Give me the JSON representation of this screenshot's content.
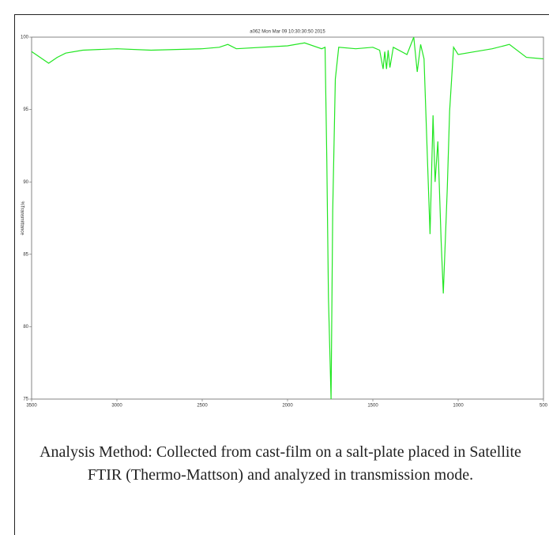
{
  "chart_data": {
    "type": "line",
    "title": "a062   Mon Mar 09 10:30:30:50 2015",
    "y_label": "%Transmittance",
    "xlim": [
      3500,
      500
    ],
    "xticks": [
      3500,
      3000,
      2500,
      2000,
      1500,
      1000,
      500
    ],
    "ylim": [
      75,
      100
    ],
    "yticks": [
      75,
      80,
      85,
      90,
      95,
      100
    ],
    "series": [
      {
        "name": "a062",
        "color": "#22e622",
        "x": [
          3500,
          3450,
          3400,
          3350,
          3300,
          3200,
          3000,
          2800,
          2500,
          2400,
          2350,
          2300,
          2000,
          1900,
          1800,
          1780,
          1770,
          1760,
          1745,
          1735,
          1720,
          1700,
          1600,
          1500,
          1460,
          1440,
          1430,
          1420,
          1410,
          1400,
          1380,
          1300,
          1260,
          1240,
          1220,
          1200,
          1180,
          1165,
          1147,
          1135,
          1119,
          1100,
          1087,
          1064,
          1050,
          1027,
          1000,
          900,
          800,
          700,
          600,
          500
        ],
        "values": [
          99,
          98.6,
          98.2,
          98.6,
          98.9,
          99.1,
          99.2,
          99.1,
          99.2,
          99.3,
          99.5,
          99.2,
          99.4,
          99.6,
          99.2,
          99.3,
          91.6,
          82,
          75,
          88,
          97.1,
          99.3,
          99.2,
          99.3,
          99.1,
          97.8,
          99,
          97.8,
          99.1,
          97.9,
          99.3,
          98.8,
          100,
          97.6,
          99.5,
          98.5,
          91.6,
          86.4,
          94.6,
          90,
          92.8,
          86,
          82.3,
          89.5,
          94.9,
          99.3,
          98.8,
          99,
          99.2,
          99.5,
          98.6,
          98.5
        ]
      }
    ],
    "caption": "Analysis Method: Collected from cast-film on a salt-plate placed in Satellite FTIR (Thermo-Mattson) and analyzed in transmission mode."
  }
}
